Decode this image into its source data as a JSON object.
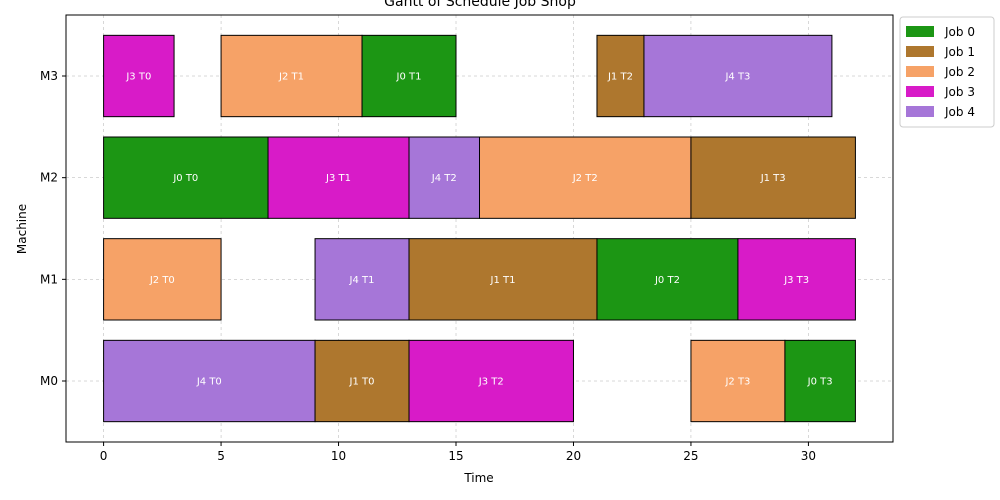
{
  "chart_data": {
    "type": "gantt",
    "title": "Gantt of Schedule Job Shop",
    "xlabel": "Time",
    "ylabel": "Machine",
    "xlim": [
      -1.6,
      33.6
    ],
    "xticks": [
      0,
      5,
      10,
      15,
      20,
      25,
      30
    ],
    "machines": [
      "M0",
      "M1",
      "M2",
      "M3"
    ],
    "grid": true,
    "legend_position": "top-right, outside",
    "jobs": [
      {
        "name": "Job 0",
        "color": "#1c9614"
      },
      {
        "name": "Job 1",
        "color": "#ae772e"
      },
      {
        "name": "Job 2",
        "color": "#f6a267"
      },
      {
        "name": "Job 3",
        "color": "#d81bc8"
      },
      {
        "name": "Job 4",
        "color": "#a676d8"
      }
    ],
    "tasks": [
      {
        "machine": "M0",
        "job": 4,
        "start": 0,
        "end": 9,
        "label": "J4 T0"
      },
      {
        "machine": "M0",
        "job": 1,
        "start": 9,
        "end": 13,
        "label": "J1 T0"
      },
      {
        "machine": "M0",
        "job": 3,
        "start": 13,
        "end": 20,
        "label": "J3 T2"
      },
      {
        "machine": "M0",
        "job": 2,
        "start": 25,
        "end": 29,
        "label": "J2 T3"
      },
      {
        "machine": "M0",
        "job": 0,
        "start": 29,
        "end": 32,
        "label": "J0 T3"
      },
      {
        "machine": "M1",
        "job": 2,
        "start": 0,
        "end": 5,
        "label": "J2 T0"
      },
      {
        "machine": "M1",
        "job": 4,
        "start": 9,
        "end": 13,
        "label": "J4 T1"
      },
      {
        "machine": "M1",
        "job": 1,
        "start": 13,
        "end": 21,
        "label": "J1 T1"
      },
      {
        "machine": "M1",
        "job": 0,
        "start": 21,
        "end": 27,
        "label": "J0 T2"
      },
      {
        "machine": "M1",
        "job": 3,
        "start": 27,
        "end": 32,
        "label": "J3 T3"
      },
      {
        "machine": "M2",
        "job": 0,
        "start": 0,
        "end": 7,
        "label": "J0 T0"
      },
      {
        "machine": "M2",
        "job": 3,
        "start": 7,
        "end": 13,
        "label": "J3 T1"
      },
      {
        "machine": "M2",
        "job": 4,
        "start": 13,
        "end": 16,
        "label": "J4 T2"
      },
      {
        "machine": "M2",
        "job": 2,
        "start": 16,
        "end": 25,
        "label": "J2 T2"
      },
      {
        "machine": "M2",
        "job": 1,
        "start": 25,
        "end": 32,
        "label": "J1 T3"
      },
      {
        "machine": "M3",
        "job": 3,
        "start": 0,
        "end": 3,
        "label": "J3 T0"
      },
      {
        "machine": "M3",
        "job": 2,
        "start": 5,
        "end": 11,
        "label": "J2 T1"
      },
      {
        "machine": "M3",
        "job": 0,
        "start": 11,
        "end": 15,
        "label": "J0 T1"
      },
      {
        "machine": "M3",
        "job": 1,
        "start": 21,
        "end": 23,
        "label": "J1 T2"
      },
      {
        "machine": "M3",
        "job": 4,
        "start": 23,
        "end": 31,
        "label": "J4 T3"
      }
    ]
  }
}
